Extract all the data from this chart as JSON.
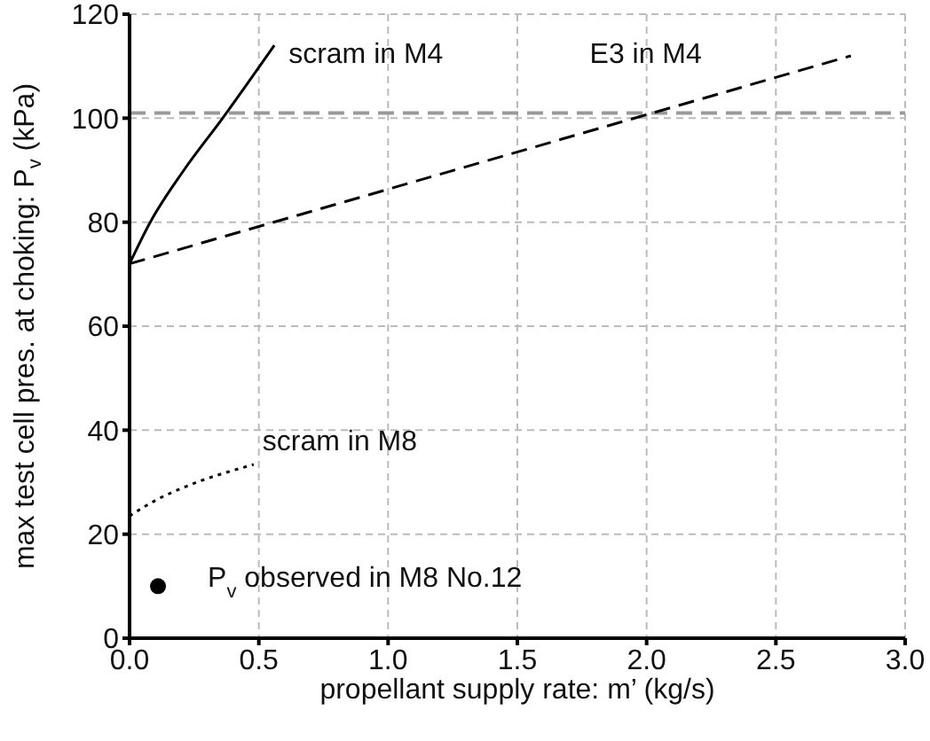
{
  "chart_data": {
    "type": "line",
    "xlabel": "propellant supply rate: m’ (kg/s)",
    "ylabel": "max test cell pres. at choking: P$_{v}$ (kPa)",
    "xlim": [
      0,
      3
    ],
    "xticks": [
      {
        "value": 0,
        "label": "0.0"
      },
      {
        "value": 0.5,
        "label": "0.5"
      },
      {
        "value": 1,
        "label": "1.0"
      },
      {
        "value": 1.5,
        "label": "1.5"
      },
      {
        "value": 2,
        "label": "2.0"
      },
      {
        "value": 2.5,
        "label": "2.5"
      },
      {
        "value": 3,
        "label": "3.0"
      }
    ],
    "ylim": [
      0,
      120
    ],
    "yticks": [
      0,
      20,
      40,
      60,
      80,
      100,
      120
    ],
    "grid": true,
    "series": [
      {
        "name": "scram in M4",
        "color": "#000000",
        "line_style": "solid",
        "marker": "none",
        "x": [
          0,
          0.08,
          0.21,
          0.36,
          0.56
        ],
        "values": [
          72,
          80,
          90,
          100,
          114
        ]
      },
      {
        "name": "E3 in M4",
        "color": "#000000",
        "line_style": "dashed",
        "marker": "none",
        "x": [
          0,
          2.79
        ],
        "values": [
          72,
          112
        ]
      },
      {
        "name": "scram in M8",
        "color": "#000000",
        "line_style": "dotted",
        "marker": "none",
        "x": [
          0,
          0.1,
          0.21,
          0.48
        ],
        "values": [
          23.5,
          26.5,
          29,
          33.4
        ]
      },
      {
        "name": "P$_{v}$ observed in M8 No.12",
        "type": "scatter",
        "color": "#000000",
        "marker": "circle",
        "x": [
          0.11
        ],
        "values": [
          10
        ]
      }
    ],
    "ref_lines": [
      {
        "axis": "y",
        "value": 101,
        "color": "#999999",
        "line_style": "dashed"
      }
    ]
  }
}
